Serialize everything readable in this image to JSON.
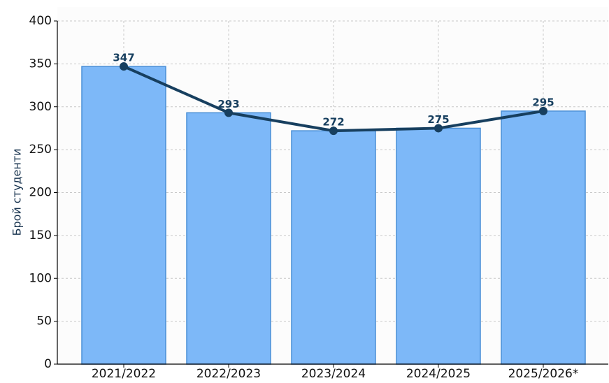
{
  "chart_data": {
    "type": "bar",
    "y_label": "Брой студенти",
    "categories": [
      "2021/2022",
      "2022/2023",
      "2023/2024",
      "2024/2025",
      "2025/2026*"
    ],
    "series": [
      {
        "type": "bar",
        "color": "#7db8f8",
        "edge_color": "#4a8fd6",
        "values": [
          347,
          293,
          272,
          275,
          295
        ]
      },
      {
        "type": "line",
        "color": "#173f5f",
        "values": [
          347,
          293,
          272,
          275,
          295
        ],
        "data_labels": true
      }
    ],
    "ylim": [
      0,
      400
    ],
    "yticks": [
      0,
      50,
      100,
      150,
      200,
      250,
      300,
      350,
      400
    ],
    "grid": true
  }
}
